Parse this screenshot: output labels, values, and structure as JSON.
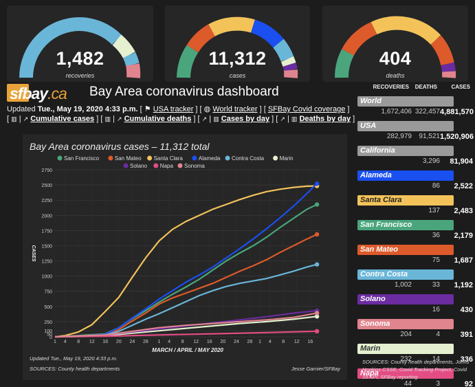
{
  "gauges": [
    {
      "value": "1,482",
      "label": "recoveries"
    },
    {
      "value": "11,312",
      "label": "cases"
    },
    {
      "value": "404",
      "label": "deaths"
    }
  ],
  "logo": {
    "main": "sfbay",
    "suffix": ".ca"
  },
  "title": "Bay Area coronavirus dashboard",
  "updated": {
    "prefix": "Updated",
    "date": "Tue., May 19, 2020 4:33 p.m."
  },
  "links": {
    "usa_tracker": "USA tracker",
    "world_tracker": "World tracker",
    "sfbay_coverage": "SFBay Covid coverage",
    "cumulative_cases": "Cumulative cases",
    "cumulative_deaths": "Cumulative deaths",
    "cases_by_day": "Cases by day",
    "deaths_by_day": "Deaths by day"
  },
  "side": {
    "headers": {
      "recoveries": "RECOVERIES",
      "deaths": "DEATHS",
      "cases": "CASES"
    },
    "rows": [
      {
        "name": "World",
        "recoveries": "1,672,406",
        "deaths": "322,457",
        "cases": "4,881,570",
        "color": "#9a9a9a",
        "text_color": "#fff"
      },
      {
        "name": "USA",
        "recoveries": "282,979",
        "deaths": "91,521",
        "cases": "1,520,906",
        "color": "#9a9a9a",
        "text_color": "#fff"
      },
      {
        "name": "California",
        "recoveries": "",
        "deaths": "3,296",
        "cases": "81,904",
        "color": "#9a9a9a",
        "text_color": "#fff"
      },
      {
        "name": "Alameda",
        "recoveries": "",
        "deaths": "86",
        "cases": "2,522",
        "color": "#1a4ff0",
        "text_color": "#fff"
      },
      {
        "name": "Santa Clara",
        "recoveries": "",
        "deaths": "137",
        "cases": "2,483",
        "color": "#f3c35a",
        "text_color": "#222"
      },
      {
        "name": "San Francisco",
        "recoveries": "",
        "deaths": "36",
        "cases": "2,179",
        "color": "#4aa57c",
        "text_color": "#fff"
      },
      {
        "name": "San Mateo",
        "recoveries": "",
        "deaths": "75",
        "cases": "1,687",
        "color": "#dd5a2b",
        "text_color": "#fff"
      },
      {
        "name": "Contra Costa",
        "recoveries": "1,002",
        "deaths": "33",
        "cases": "1,192",
        "color": "#6ab6d8",
        "text_color": "#fff"
      },
      {
        "name": "Solano",
        "recoveries": "",
        "deaths": "16",
        "cases": "430",
        "color": "#6a2ca0",
        "text_color": "#fff"
      },
      {
        "name": "Sonoma",
        "recoveries": "204",
        "deaths": "4",
        "cases": "391",
        "color": "#e0848e",
        "text_color": "#fff"
      },
      {
        "name": "Marin",
        "recoveries": "232",
        "deaths": "14",
        "cases": "336",
        "color": "#e4f0cf",
        "text_color": "#333"
      },
      {
        "name": "Napa",
        "recoveries": "44",
        "deaths": "3",
        "cases": "92",
        "color": "#e34d83",
        "text_color": "#fff"
      }
    ]
  },
  "sources": "SOURCES: County health departments, Johns Hopkins CSSE, Covid Tracking Project, Covid 19 API, SFBay reporting",
  "chart_data": {
    "type": "line",
    "title": "Bay Area coronavirus cases – 11,312 total",
    "xlabel": "MARCH / APRIL / MAY 2020",
    "ylabel": "CASES",
    "ylim": [
      0,
      2750
    ],
    "yticks": [
      0,
      50,
      100,
      250,
      500,
      750,
      1000,
      1250,
      1500,
      1750,
      2000,
      2250,
      2500,
      2750
    ],
    "x_tick_labels": [
      "1",
      "4",
      "8",
      "12",
      "16",
      "20",
      "24",
      "28",
      "1",
      "4",
      "8",
      "12",
      "16",
      "20",
      "24",
      "28",
      "1",
      "4",
      "8",
      "12",
      "16"
    ],
    "x_day_positions": [
      0,
      3,
      7,
      11,
      15,
      19,
      23,
      27,
      31,
      34,
      38,
      42,
      46,
      50,
      54,
      58,
      61,
      64,
      68,
      72,
      76
    ],
    "x_max_day": 79,
    "updated_note": "Updated Tue., May 19, 2020 4:33 p.m.",
    "source_note": "SOURCES: County health departments",
    "credit": "Jesse Garnier/SFBay",
    "series": [
      {
        "name": "San Francisco",
        "color": "#4aa57c",
        "points": [
          [
            0,
            0
          ],
          [
            7,
            20
          ],
          [
            15,
            50
          ],
          [
            19,
            150
          ],
          [
            23,
            300
          ],
          [
            27,
            430
          ],
          [
            31,
            570
          ],
          [
            35,
            700
          ],
          [
            39,
            820
          ],
          [
            43,
            950
          ],
          [
            47,
            1100
          ],
          [
            51,
            1250
          ],
          [
            55,
            1380
          ],
          [
            59,
            1500
          ],
          [
            63,
            1640
          ],
          [
            67,
            1800
          ],
          [
            71,
            1950
          ],
          [
            75,
            2100
          ],
          [
            78,
            2179
          ]
        ]
      },
      {
        "name": "San Mateo",
        "color": "#dd5a2b",
        "points": [
          [
            0,
            0
          ],
          [
            7,
            10
          ],
          [
            15,
            40
          ],
          [
            19,
            120
          ],
          [
            23,
            260
          ],
          [
            27,
            390
          ],
          [
            31,
            540
          ],
          [
            35,
            640
          ],
          [
            39,
            720
          ],
          [
            43,
            800
          ],
          [
            47,
            880
          ],
          [
            51,
            980
          ],
          [
            55,
            1080
          ],
          [
            59,
            1170
          ],
          [
            63,
            1270
          ],
          [
            67,
            1390
          ],
          [
            71,
            1500
          ],
          [
            75,
            1610
          ],
          [
            78,
            1687
          ]
        ]
      },
      {
        "name": "Santa Clara",
        "color": "#f3c35a",
        "points": [
          [
            0,
            0
          ],
          [
            3,
            20
          ],
          [
            7,
            80
          ],
          [
            11,
            200
          ],
          [
            15,
            420
          ],
          [
            19,
            650
          ],
          [
            23,
            980
          ],
          [
            27,
            1300
          ],
          [
            31,
            1580
          ],
          [
            35,
            1770
          ],
          [
            39,
            1900
          ],
          [
            43,
            2000
          ],
          [
            47,
            2100
          ],
          [
            51,
            2180
          ],
          [
            55,
            2260
          ],
          [
            59,
            2330
          ],
          [
            63,
            2390
          ],
          [
            67,
            2430
          ],
          [
            71,
            2460
          ],
          [
            75,
            2480
          ],
          [
            78,
            2483
          ]
        ]
      },
      {
        "name": "Alameda",
        "color": "#1a4ff0",
        "points": [
          [
            0,
            0
          ],
          [
            7,
            10
          ],
          [
            15,
            40
          ],
          [
            19,
            150
          ],
          [
            23,
            310
          ],
          [
            27,
            460
          ],
          [
            31,
            620
          ],
          [
            35,
            760
          ],
          [
            39,
            900
          ],
          [
            43,
            1020
          ],
          [
            47,
            1150
          ],
          [
            51,
            1300
          ],
          [
            55,
            1450
          ],
          [
            59,
            1610
          ],
          [
            63,
            1780
          ],
          [
            67,
            1960
          ],
          [
            71,
            2150
          ],
          [
            75,
            2360
          ],
          [
            78,
            2522
          ]
        ]
      },
      {
        "name": "Contra Costa",
        "color": "#6ab6d8",
        "points": [
          [
            0,
            0
          ],
          [
            7,
            5
          ],
          [
            15,
            30
          ],
          [
            19,
            90
          ],
          [
            23,
            190
          ],
          [
            27,
            290
          ],
          [
            31,
            380
          ],
          [
            35,
            480
          ],
          [
            39,
            580
          ],
          [
            43,
            680
          ],
          [
            47,
            760
          ],
          [
            51,
            830
          ],
          [
            55,
            880
          ],
          [
            59,
            920
          ],
          [
            63,
            960
          ],
          [
            67,
            1020
          ],
          [
            71,
            1080
          ],
          [
            75,
            1150
          ],
          [
            78,
            1192
          ]
        ]
      },
      {
        "name": "Marin",
        "color": "#e4f0cf",
        "points": [
          [
            0,
            0
          ],
          [
            15,
            20
          ],
          [
            23,
            60
          ],
          [
            31,
            100
          ],
          [
            39,
            140
          ],
          [
            47,
            180
          ],
          [
            55,
            220
          ],
          [
            63,
            250
          ],
          [
            71,
            290
          ],
          [
            78,
            336
          ]
        ]
      },
      {
        "name": "Solano",
        "color": "#6a2ca0",
        "points": [
          [
            0,
            0
          ],
          [
            15,
            30
          ],
          [
            23,
            80
          ],
          [
            31,
            130
          ],
          [
            39,
            180
          ],
          [
            47,
            230
          ],
          [
            55,
            280
          ],
          [
            63,
            330
          ],
          [
            71,
            390
          ],
          [
            78,
            430
          ]
        ]
      },
      {
        "name": "Napa",
        "color": "#e34d83",
        "points": [
          [
            0,
            0
          ],
          [
            15,
            10
          ],
          [
            31,
            30
          ],
          [
            47,
            50
          ],
          [
            63,
            70
          ],
          [
            78,
            92
          ]
        ]
      },
      {
        "name": "Sonoma",
        "color": "#e0848e",
        "points": [
          [
            0,
            0
          ],
          [
            15,
            30
          ],
          [
            23,
            90
          ],
          [
            31,
            150
          ],
          [
            39,
            190
          ],
          [
            47,
            220
          ],
          [
            55,
            250
          ],
          [
            63,
            280
          ],
          [
            71,
            320
          ],
          [
            78,
            391
          ]
        ]
      }
    ]
  },
  "legend_colors": {
    "accent_orange": "#e8a33a"
  }
}
